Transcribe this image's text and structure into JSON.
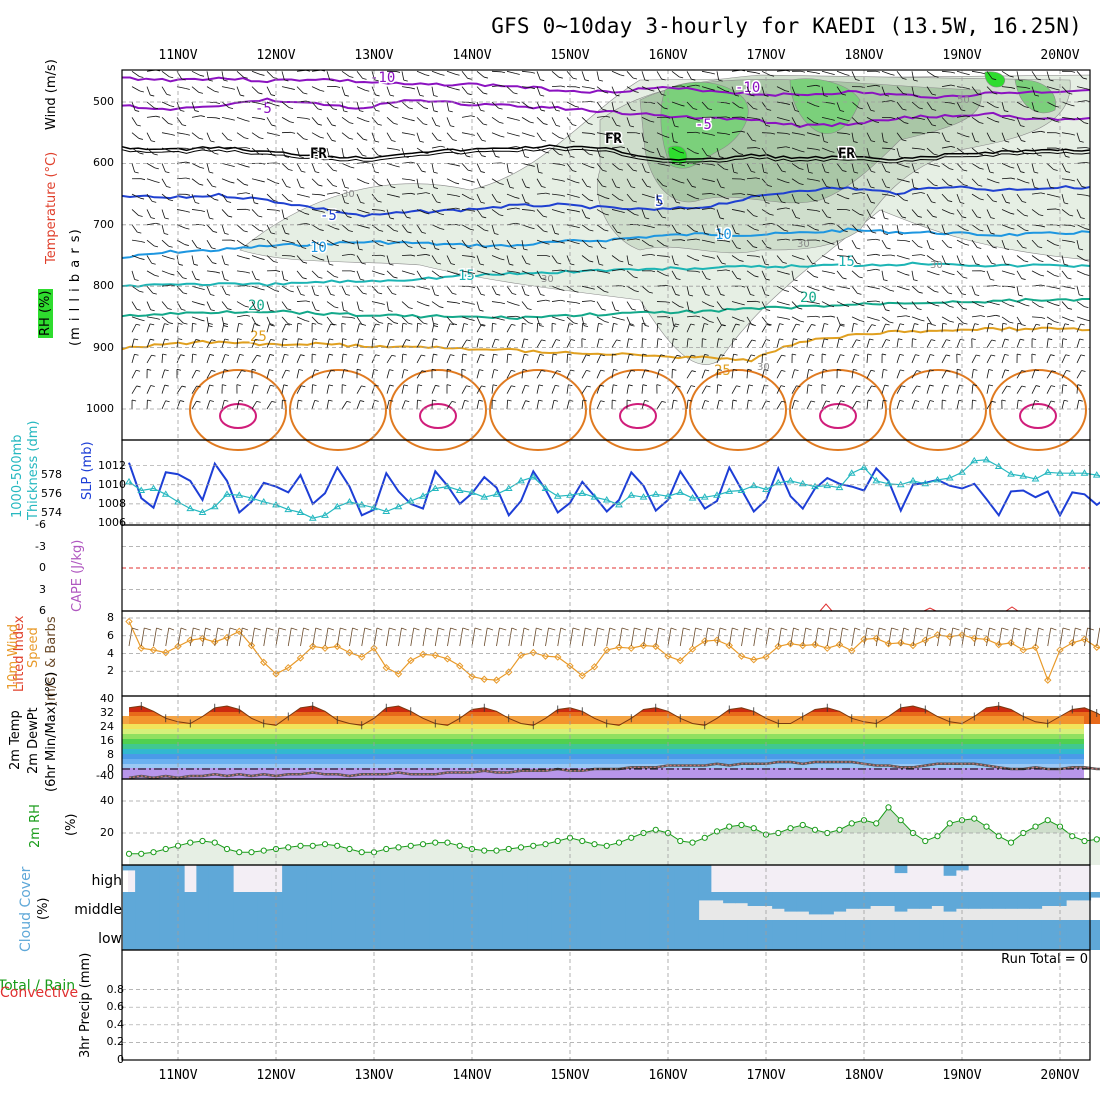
{
  "title": "GFS 0~10day 3-hourly for KAEDI (13.5W, 16.25N)",
  "dates": [
    "11NOV",
    "12NOV",
    "13NOV",
    "14NOV",
    "15NOV",
    "16NOV",
    "17NOV",
    "18NOV",
    "19NOV",
    "20NOV"
  ],
  "colors": {
    "temp_contours": {
      "-10": "#8b12c0",
      "-5": "#8b12c0",
      "0": "#000000",
      "5": "#1f40d0",
      "10": "#1d96e0",
      "15": "#1cb4b4",
      "20": "#13a88a",
      "25": "#e0a020",
      "30": "#e07a20",
      "35": "#d01d7a"
    },
    "rh_fill": [
      "#e6efe4",
      "#cfdecc",
      "#a9c6a6",
      "#7bd07b",
      "#2edc2e"
    ],
    "slp": "#1d3ed6",
    "thickness": "#26b8c0",
    "wind_speed": "#e89a2a",
    "rh2m": "#1a9c1a",
    "cloud": "#5fa8d8",
    "grid": "#9e9e9e"
  },
  "panels": {
    "upper": {
      "ylabels": [
        "Wind (m/s)",
        "Temperature (°C)",
        "(m i l l i b a r s)",
        "RH (%)"
      ],
      "ticks": [
        "500",
        "600",
        "700",
        "800",
        "900",
        "1000"
      ],
      "contour_labels": [
        "-10",
        "-5",
        "FR",
        "-5",
        "5",
        "10",
        "15",
        "20",
        "25",
        "25",
        "FR",
        "-10",
        "-5",
        "FR",
        "5",
        "10",
        "15",
        "20",
        "30",
        "50",
        "30",
        "30",
        "30"
      ]
    },
    "slp": {
      "ylabels": [
        "1000-500mb",
        "Thickness (dm)",
        "SLP (mb)"
      ],
      "left_ticks": [
        "578",
        "576",
        "574"
      ],
      "right_ticks": [
        "1012",
        "1010",
        "1008",
        "1006"
      ]
    },
    "li": {
      "ylabels": [
        "Lifted Index",
        "CAPE (J/kg)"
      ],
      "ticks": [
        "-6",
        "-3",
        "0",
        "3",
        "6"
      ]
    },
    "wind10": {
      "ylabels": [
        "10m Wind",
        "Speed",
        "(m/s) & Barbs"
      ],
      "ticks": [
        "8",
        "6",
        "4",
        "2"
      ]
    },
    "temp2m": {
      "ylabels": [
        "2m Temp",
        "2m DewPt",
        "(6hr Min/Max) (°C)"
      ],
      "ticks": [
        "40",
        "32",
        "24",
        "16",
        "8",
        "0",
        "-40"
      ]
    },
    "rh2m": {
      "ylabels": [
        "2m RH",
        "(%)"
      ],
      "ticks": [
        "40",
        "20"
      ]
    },
    "cloud": {
      "ylabels": [
        "Cloud Cover",
        "(%)"
      ],
      "levels": [
        "high",
        "middle",
        "low"
      ]
    },
    "precip": {
      "ylabels": [
        "Total / Rain",
        "Convective",
        "3hr Precip (mm)"
      ],
      "ticks": [
        "0.8",
        "0.6",
        "0.4",
        "0.2",
        "0"
      ],
      "run_total": "Run Total = 0"
    }
  },
  "chart_data": [
    {
      "type": "line",
      "title": "Sea level pressure / 1000-500mb thickness",
      "x_unit": "3-hourly steps from 10 NOV 12Z (81 steps, through 20 NOV 12Z)",
      "series": [
        {
          "name": "SLP (mb)",
          "values": [
            1012.3,
            1008.6,
            1007.6,
            1011.3,
            1011.1,
            1010.4,
            1008.4,
            1012.2,
            1010.4,
            1007.1,
            1008.2,
            1010.2,
            1009.8,
            1009.2,
            1011.0,
            1008.0,
            1009.1,
            1011.8,
            1009.8,
            1006.8,
            1007.4,
            1011.2,
            1009.3,
            1008.0,
            1007.5,
            1011.4,
            1009.9,
            1008.0,
            1009.1,
            1010.8,
            1009.7,
            1006.8,
            1008.3,
            1011.4,
            1009.5,
            1007.1,
            1008.1,
            1010.3,
            1008.8,
            1007.2,
            1008.4,
            1011.3,
            1009.9,
            1007.3,
            1008.4,
            1011.4,
            1009.5,
            1007.5,
            1008.3,
            1011.8,
            1009.5,
            1007.2,
            1008.4,
            1011.7,
            1008.8,
            1007.5,
            1009.6,
            1010.7,
            1010.1,
            1009.8,
            1009.4,
            1011.7,
            1010.4,
            1007.3,
            1010.0,
            1010.2,
            1010.5,
            1009.9,
            1009.6,
            1010.1,
            1008.5,
            1006.8,
            1009.3,
            1009.4,
            1008.7,
            1009.3,
            1006.8,
            1009.2,
            1009.0,
            1007.9,
            1008.8
          ]
        },
        {
          "name": "1000-500mb Thickness (dm)",
          "values": [
            577.3,
            576.4,
            576.6,
            576.0,
            575.2,
            574.5,
            574.1,
            574.7,
            576.0,
            575.9,
            575.6,
            575.2,
            574.9,
            574.4,
            574.1,
            573.5,
            573.8,
            574.7,
            575.2,
            574.9,
            574.6,
            574.2,
            574.7,
            575.3,
            575.8,
            576.6,
            576.8,
            576.4,
            576.2,
            575.7,
            576.0,
            576.6,
            577.4,
            577.8,
            576.6,
            575.8,
            575.9,
            576.1,
            575.7,
            575.4,
            574.9,
            575.9,
            575.7,
            576.0,
            575.8,
            576.2,
            575.6,
            575.7,
            575.9,
            576.3,
            576.4,
            576.9,
            576.5,
            577.2,
            577.4,
            577.1,
            576.8,
            576.9,
            576.7,
            578.2,
            578.8,
            577.4,
            577.1,
            577.0,
            577.4,
            577.1,
            577.5,
            577.7,
            578.3,
            579.5,
            579.6,
            578.9,
            578.1,
            577.9,
            577.6,
            578.3,
            578.2,
            578.2,
            578.2,
            578.0,
            577.7
          ]
        }
      ],
      "ylim_slp": [
        1006,
        1013
      ],
      "ylim_thickness": [
        573,
        580
      ]
    },
    {
      "type": "line",
      "title": "10m wind speed",
      "x_unit": "3-hourly steps from 10 NOV 12Z",
      "series": [
        {
          "name": "Speed (m/s)",
          "values": [
            7.6,
            4.6,
            4.4,
            4.1,
            4.8,
            5.5,
            5.7,
            5.3,
            5.8,
            6.5,
            4.9,
            3.0,
            1.7,
            2.4,
            3.5,
            4.8,
            4.6,
            4.8,
            4.1,
            3.6,
            4.6,
            2.4,
            1.7,
            3.2,
            3.9,
            3.8,
            3.4,
            2.6,
            1.4,
            1.1,
            1.0,
            1.9,
            3.8,
            4.1,
            3.7,
            3.6,
            2.6,
            1.5,
            2.5,
            4.4,
            4.7,
            4.6,
            4.9,
            4.8,
            3.7,
            3.2,
            4.5,
            5.4,
            5.5,
            4.9,
            3.7,
            3.3,
            3.6,
            4.8,
            5.1,
            4.9,
            5.0,
            4.6,
            5.0,
            4.3,
            5.6,
            5.7,
            5.1,
            5.2,
            4.9,
            5.5,
            6.1,
            5.9,
            6.1,
            5.7,
            5.6,
            5.0,
            5.2,
            4.4,
            4.7,
            1.0,
            4.4,
            5.2,
            5.6,
            4.7,
            4.4
          ]
        }
      ],
      "ylim": [
        0,
        8
      ]
    },
    {
      "type": "area",
      "title": "2m temperature (6hr min/max)",
      "x_unit": "3-hourly steps from 10 NOV 12Z",
      "series": [
        {
          "name": "2m Temp (°C)",
          "values": [
            35,
            36,
            33,
            29,
            27,
            26,
            30,
            35,
            36,
            34,
            29,
            26,
            25,
            30,
            35,
            36,
            33,
            28,
            26,
            25,
            29,
            35,
            36,
            33,
            29,
            26,
            25,
            29,
            34,
            35,
            33,
            29,
            26,
            25,
            29,
            34,
            35,
            33,
            29,
            26,
            25,
            29,
            34,
            35,
            33,
            29,
            26,
            25,
            29,
            34,
            35,
            33,
            29,
            26,
            26,
            30,
            34,
            35,
            33,
            29,
            27,
            26,
            30,
            35,
            36,
            34,
            30,
            27,
            26,
            30,
            35,
            36,
            34,
            30,
            27,
            26,
            30,
            34,
            35,
            32,
            28
          ]
        },
        {
          "name": "2m DewPt (°C)",
          "values": [
            -5,
            -4,
            -5,
            -4,
            -5,
            -4,
            -4,
            -3,
            -4,
            -3,
            -4,
            -3,
            -4,
            -3,
            -3,
            -2,
            -3,
            -3,
            -4,
            -3,
            -3,
            -3,
            -2,
            -3,
            -3,
            -3,
            -2,
            -2,
            -2,
            -1,
            -2,
            -2,
            -1,
            -1,
            -1,
            0,
            -1,
            -1,
            0,
            0,
            0,
            1,
            1,
            1,
            2,
            2,
            2,
            2,
            3,
            2,
            3,
            3,
            3,
            4,
            4,
            3,
            4,
            4,
            4,
            4,
            3,
            2,
            2,
            1,
            1,
            2,
            3,
            3,
            3,
            3,
            2,
            1,
            0,
            0,
            1,
            0,
            0,
            1,
            1,
            0,
            0
          ]
        }
      ],
      "ylim": [
        -40,
        40
      ]
    },
    {
      "type": "area",
      "title": "2m relative humidity",
      "x_unit": "3-hourly steps from 10 NOV 12Z",
      "series": [
        {
          "name": "2m RH (%)",
          "values": [
            7,
            7,
            8,
            10,
            12,
            14,
            15,
            14,
            10,
            8,
            8,
            9,
            10,
            11,
            12,
            12,
            13,
            12,
            10,
            8,
            8,
            10,
            11,
            12,
            13,
            14,
            14,
            12,
            10,
            9,
            9,
            10,
            11,
            12,
            13,
            15,
            17,
            15,
            13,
            12,
            14,
            17,
            20,
            22,
            20,
            15,
            14,
            17,
            21,
            24,
            25,
            23,
            19,
            20,
            23,
            25,
            22,
            20,
            22,
            26,
            28,
            26,
            36,
            28,
            20,
            15,
            18,
            26,
            28,
            29,
            24,
            18,
            14,
            20,
            24,
            28,
            24,
            18,
            15,
            16,
            20
          ]
        }
      ],
      "ylim": [
        0,
        50
      ]
    },
    {
      "type": "heatmap",
      "title": "Cloud cover (%) by level",
      "x_unit": "3-hourly steps from 10 NOV 12Z",
      "series": [
        {
          "name": "high",
          "values": [
            20,
            100,
            100,
            100,
            100,
            0,
            100,
            100,
            100,
            0,
            0,
            0,
            0,
            100,
            100,
            100,
            100,
            100,
            100,
            100,
            100,
            100,
            100,
            100,
            100,
            100,
            100,
            100,
            100,
            100,
            100,
            100,
            100,
            100,
            100,
            100,
            100,
            100,
            100,
            100,
            100,
            100,
            100,
            100,
            100,
            100,
            100,
            100,
            0,
            0,
            0,
            0,
            0,
            0,
            0,
            0,
            0,
            0,
            0,
            0,
            0,
            0,
            0,
            30,
            0,
            0,
            0,
            40,
            20,
            0,
            0,
            0,
            0,
            0,
            0,
            0,
            0,
            0,
            0,
            0,
            0
          ]
        },
        {
          "name": "middle",
          "values": [
            100,
            100,
            100,
            100,
            100,
            100,
            100,
            100,
            100,
            100,
            100,
            100,
            100,
            100,
            100,
            100,
            100,
            100,
            100,
            100,
            100,
            100,
            100,
            100,
            100,
            100,
            100,
            100,
            100,
            100,
            100,
            100,
            100,
            100,
            100,
            100,
            100,
            100,
            100,
            100,
            100,
            100,
            100,
            100,
            100,
            100,
            100,
            30,
            30,
            40,
            40,
            50,
            50,
            60,
            70,
            70,
            80,
            80,
            70,
            60,
            60,
            50,
            50,
            70,
            60,
            60,
            50,
            70,
            60,
            60,
            60,
            60,
            60,
            60,
            60,
            50,
            50,
            30,
            30,
            20,
            20
          ]
        },
        {
          "name": "low",
          "values": [
            100,
            100,
            100,
            100,
            100,
            100,
            100,
            100,
            100,
            100,
            100,
            100,
            100,
            100,
            100,
            100,
            100,
            100,
            100,
            100,
            100,
            100,
            100,
            100,
            100,
            100,
            100,
            100,
            100,
            100,
            100,
            100,
            100,
            100,
            100,
            100,
            100,
            100,
            100,
            100,
            100,
            100,
            100,
            100,
            100,
            100,
            100,
            100,
            100,
            100,
            100,
            100,
            100,
            100,
            100,
            100,
            100,
            100,
            100,
            100,
            100,
            100,
            100,
            100,
            100,
            100,
            100,
            100,
            100,
            100,
            100,
            100,
            100,
            100,
            100,
            100,
            100,
            100,
            100,
            100,
            100
          ]
        }
      ]
    },
    {
      "type": "bar",
      "title": "3hr precipitation",
      "series": [
        {
          "name": "Total / Rain (mm)",
          "values": [
            0
          ]
        },
        {
          "name": "Convective (mm)",
          "values": [
            0
          ]
        }
      ],
      "ylim": [
        0,
        1
      ]
    }
  ]
}
